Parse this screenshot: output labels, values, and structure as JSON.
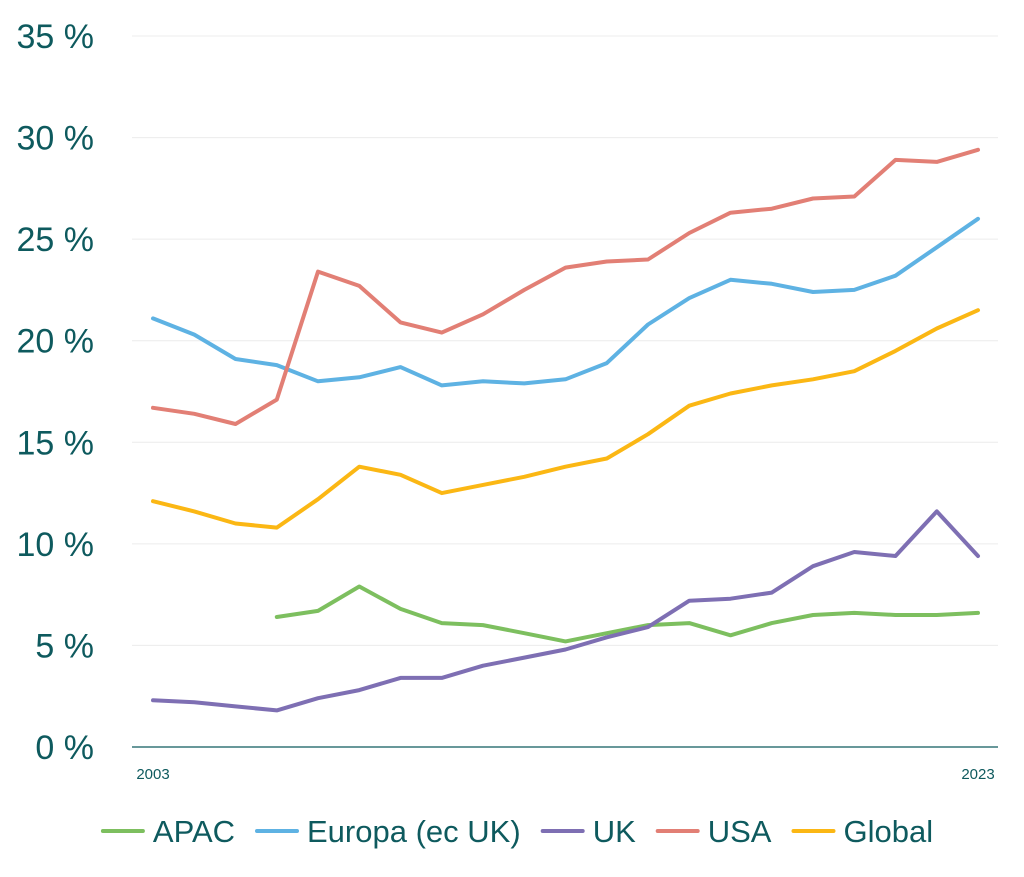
{
  "chart_data": {
    "type": "line",
    "title": "",
    "xlabel": "",
    "ylabel": "",
    "x": [
      2003,
      2004,
      2005,
      2006,
      2007,
      2008,
      2009,
      2010,
      2011,
      2012,
      2013,
      2014,
      2015,
      2016,
      2017,
      2018,
      2019,
      2020,
      2021,
      2022,
      2023
    ],
    "x_tick_labels": [
      "2003",
      "2023"
    ],
    "y_tick_labels": [
      "0 %",
      "5 %",
      "10 %",
      "15 %",
      "20 %",
      "25 %",
      "30 %",
      "35 %"
    ],
    "ylim": [
      0,
      35
    ],
    "grid": true,
    "legend_position": "bottom",
    "series": [
      {
        "name": "APAC",
        "color": "#7dbf5f",
        "values": [
          null,
          null,
          null,
          6.4,
          6.7,
          7.9,
          6.8,
          6.1,
          6.0,
          5.6,
          5.2,
          5.6,
          6.0,
          6.1,
          5.5,
          6.1,
          6.5,
          6.6,
          6.5,
          6.5,
          6.6
        ]
      },
      {
        "name": "Europa (ec UK)",
        "color": "#5eb2e3",
        "values": [
          21.1,
          20.3,
          19.1,
          18.8,
          18.0,
          18.2,
          18.7,
          17.8,
          18.0,
          17.9,
          18.1,
          18.9,
          20.8,
          22.1,
          23.0,
          22.8,
          22.4,
          22.5,
          23.2,
          24.6,
          26.0
        ]
      },
      {
        "name": "UK",
        "color": "#7e6fb3",
        "values": [
          2.3,
          2.2,
          2.0,
          1.8,
          2.4,
          2.8,
          3.4,
          3.4,
          4.0,
          4.4,
          4.8,
          5.4,
          5.9,
          7.2,
          7.3,
          7.6,
          8.9,
          9.6,
          9.4,
          11.6,
          9.4
        ]
      },
      {
        "name": "USA",
        "color": "#e27f75",
        "values": [
          16.7,
          16.4,
          15.9,
          17.1,
          23.4,
          22.7,
          20.9,
          20.4,
          21.3,
          22.5,
          23.6,
          23.9,
          24.0,
          25.3,
          26.3,
          26.5,
          27.0,
          27.1,
          28.9,
          28.8,
          29.4
        ]
      },
      {
        "name": "Global",
        "color": "#fbb714",
        "values": [
          12.1,
          11.6,
          11.0,
          10.8,
          12.2,
          13.8,
          13.4,
          12.5,
          12.9,
          13.3,
          13.8,
          14.2,
          15.4,
          16.8,
          17.4,
          17.8,
          18.1,
          18.5,
          19.5,
          20.6,
          21.5
        ]
      }
    ]
  }
}
